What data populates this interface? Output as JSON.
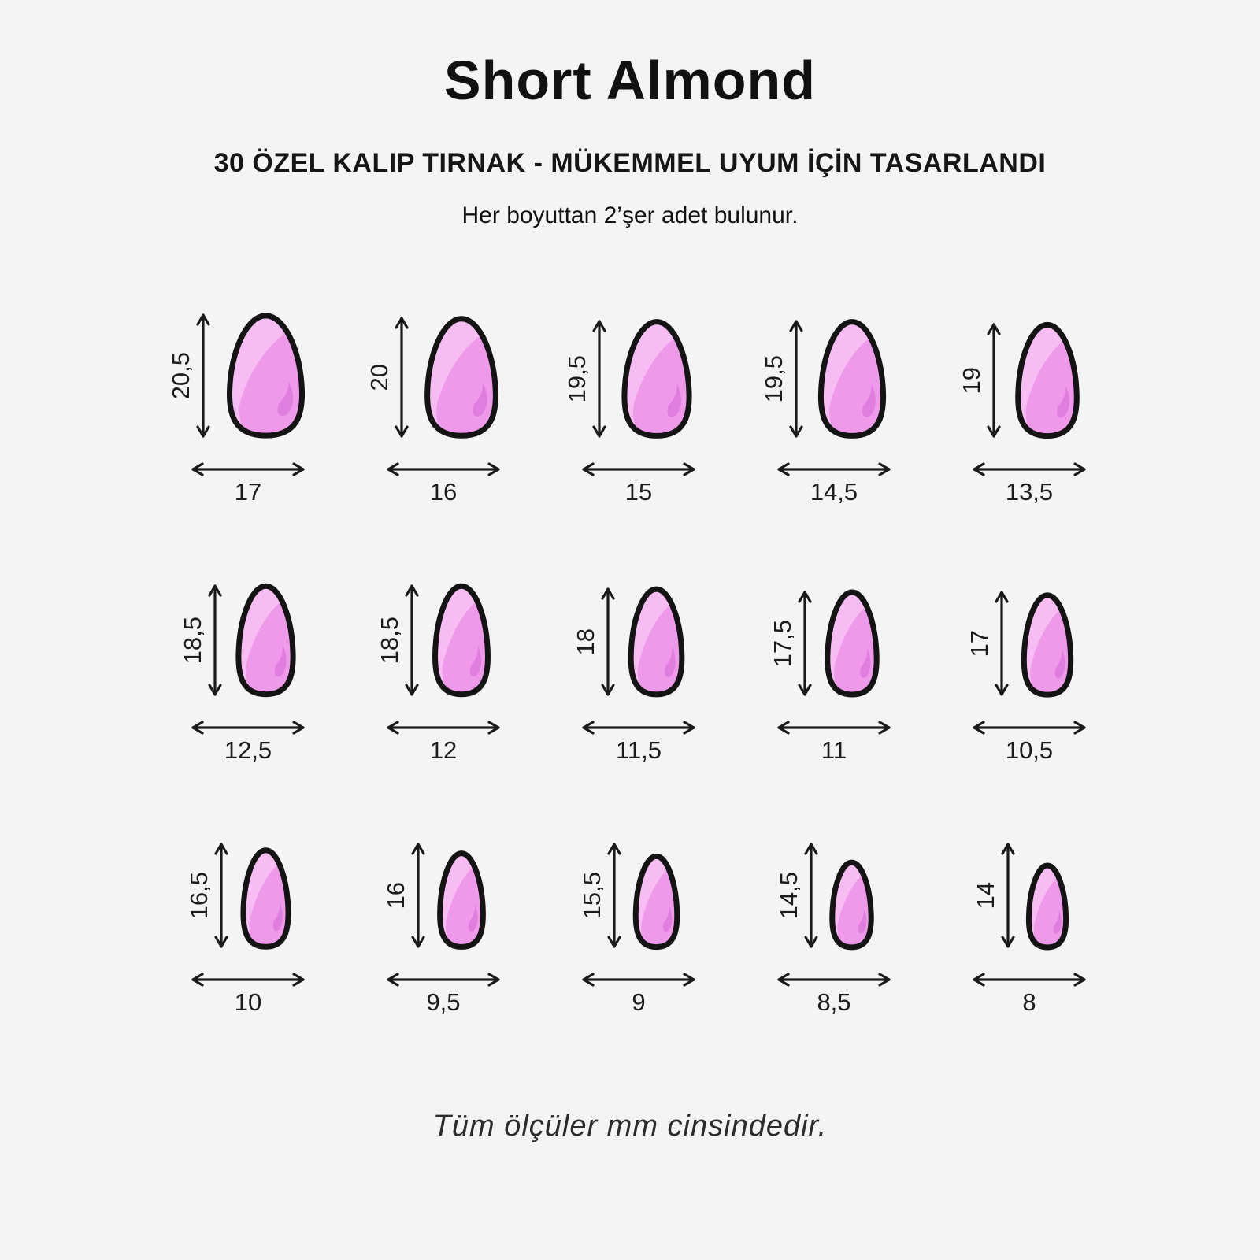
{
  "header": {
    "title": "Short Almond",
    "subtitle": "30 ÖZEL KALIP TIRNAK - MÜKEMMEL UYUM İÇİN TASARLANDI",
    "description": "Her boyuttan 2’şer adet bulunur."
  },
  "footer": {
    "note": "Tüm ölçüler mm cinsindedir."
  },
  "colors": {
    "background": "#f5f4f5",
    "outline": "#141414",
    "text": "#1c1c1c",
    "nail_fill": "#ef99ea",
    "nail_highlight": "#f7bdf3",
    "nail_accent": "#e07ee0"
  },
  "sizes": [
    {
      "height": "20,5",
      "width": "17"
    },
    {
      "height": "20",
      "width": "16"
    },
    {
      "height": "19,5",
      "width": "15"
    },
    {
      "height": "19,5",
      "width": "14,5"
    },
    {
      "height": "19",
      "width": "13,5"
    },
    {
      "height": "18,5",
      "width": "12,5"
    },
    {
      "height": "18,5",
      "width": "12"
    },
    {
      "height": "18",
      "width": "11,5"
    },
    {
      "height": "17,5",
      "width": "11"
    },
    {
      "height": "17",
      "width": "10,5"
    },
    {
      "height": "16,5",
      "width": "10"
    },
    {
      "height": "16",
      "width": "9,5"
    },
    {
      "height": "15,5",
      "width": "9"
    },
    {
      "height": "14,5",
      "width": "8,5"
    },
    {
      "height": "14",
      "width": "8"
    }
  ]
}
